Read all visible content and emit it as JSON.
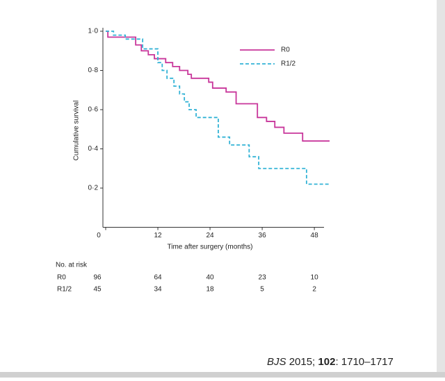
{
  "chart_data": {
    "type": "step",
    "xlabel": "Time after surgery (months)",
    "ylabel": "Cumulative survival",
    "xlim": [
      0,
      51.5
    ],
    "xticks": [
      0,
      12,
      24,
      36,
      48
    ],
    "ylim": [
      0,
      1
    ],
    "yticks": [
      {
        "value": 0.2,
        "label": "0·2"
      },
      {
        "value": 0.4,
        "label": "0·4"
      },
      {
        "value": 0.6,
        "label": "0·6"
      },
      {
        "value": 0.8,
        "label": "0·8"
      },
      {
        "value": 1,
        "label": "1·0"
      }
    ],
    "legend": "upper right",
    "series": [
      {
        "name": "R0",
        "color": "#c8359a",
        "dashed": false,
        "x": [
          0,
          0.5,
          6.9,
          8.2,
          9.8,
          11.2,
          13.8,
          15.4,
          17,
          18.9,
          19.7,
          23.7,
          24.6,
          27.7,
          30,
          34.9,
          37,
          38.9,
          41,
          45.3,
          51.5
        ],
        "values": [
          1,
          0.97,
          0.93,
          0.9,
          0.88,
          0.86,
          0.84,
          0.82,
          0.8,
          0.78,
          0.76,
          0.74,
          0.71,
          0.69,
          0.63,
          0.56,
          0.54,
          0.51,
          0.48,
          0.44,
          0.44
        ]
      },
      {
        "name": "R1/2",
        "color": "#33b3d6",
        "dashed": true,
        "x": [
          0,
          1.8,
          4.5,
          8.5,
          12,
          13,
          14.1,
          15.7,
          17,
          18.1,
          19.2,
          20.8,
          25.9,
          28.5,
          33,
          35.2,
          46.2,
          51.5
        ],
        "values": [
          1,
          0.98,
          0.96,
          0.91,
          0.84,
          0.8,
          0.76,
          0.72,
          0.68,
          0.64,
          0.6,
          0.56,
          0.46,
          0.42,
          0.36,
          0.3,
          0.22,
          0.22
        ]
      }
    ],
    "at_risk": {
      "title": "No. at risk",
      "rows": [
        {
          "name": "R0",
          "values": [
            96,
            64,
            40,
            23,
            10
          ]
        },
        {
          "name": "R1/2",
          "values": [
            45,
            34,
            18,
            5,
            2
          ]
        }
      ]
    }
  },
  "citation": {
    "journal": "BJS",
    "year": "2015;",
    "volume": "102",
    "pages": ": 1710–1717"
  }
}
